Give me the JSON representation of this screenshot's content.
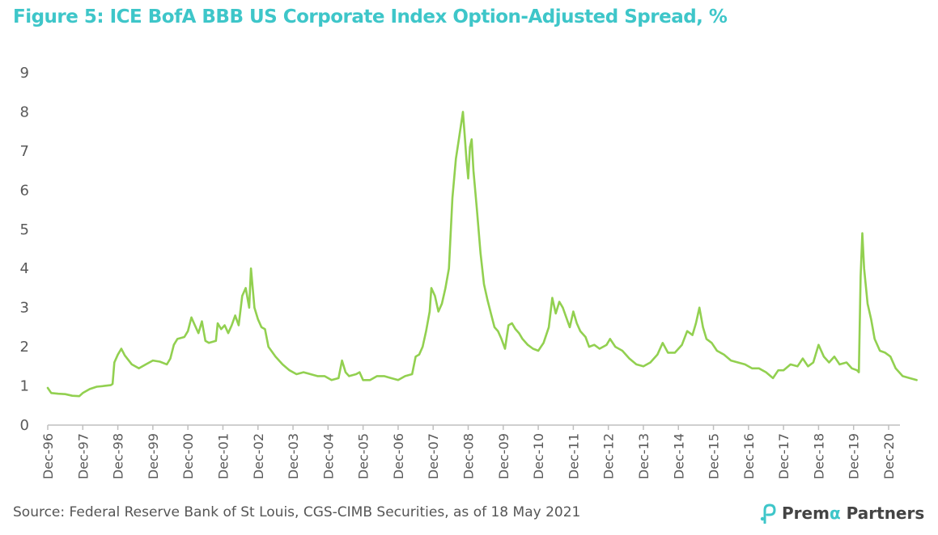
{
  "title": "Figure 5: ICE BofA BBB US Corporate Index Option-Adjusted Spread, %",
  "source": "Source: Federal Reserve Bank of St Louis, CGS-CIMB Securities, as of 18 May 2021",
  "logo": {
    "brand_prefix": "Prem",
    "brand_alpha": "α",
    "brand_suffix": " Partners"
  },
  "colors": {
    "title": "#3ec6c9",
    "line": "#92d050",
    "axis": "#bfbfbf",
    "text": "#595959"
  },
  "chart_data": {
    "type": "line",
    "title": "Figure 5: ICE BofA BBB US Corporate Index Option-Adjusted Spread, %",
    "xlabel": "",
    "ylabel": "",
    "x_ticks": [
      "Dec-96",
      "Dec-97",
      "Dec-98",
      "Dec-99",
      "Dec-00",
      "Dec-01",
      "Dec-02",
      "Dec-03",
      "Dec-04",
      "Dec-05",
      "Dec-06",
      "Dec-07",
      "Dec-08",
      "Dec-09",
      "Dec-10",
      "Dec-11",
      "Dec-12",
      "Dec-13",
      "Dec-14",
      "Dec-15",
      "Dec-16",
      "Dec-17",
      "Dec-18",
      "Dec-19",
      "Dec-20"
    ],
    "y_ticks": [
      "0",
      "1",
      "2",
      "3",
      "4",
      "5",
      "6",
      "7",
      "8",
      "9"
    ],
    "ylim": [
      0,
      9
    ],
    "grid": false,
    "legend": "none",
    "x_unit": "years after Dec-96",
    "series": [
      {
        "name": "",
        "points": [
          [
            0.0,
            0.95
          ],
          [
            0.1,
            0.82
          ],
          [
            0.3,
            0.8
          ],
          [
            0.5,
            0.79
          ],
          [
            0.7,
            0.75
          ],
          [
            0.9,
            0.74
          ],
          [
            1.0,
            0.82
          ],
          [
            1.2,
            0.92
          ],
          [
            1.4,
            0.98
          ],
          [
            1.6,
            1.0
          ],
          [
            1.8,
            1.02
          ],
          [
            1.85,
            1.05
          ],
          [
            1.9,
            1.6
          ],
          [
            2.0,
            1.8
          ],
          [
            2.1,
            1.95
          ],
          [
            2.2,
            1.78
          ],
          [
            2.4,
            1.55
          ],
          [
            2.6,
            1.45
          ],
          [
            2.8,
            1.55
          ],
          [
            3.0,
            1.65
          ],
          [
            3.2,
            1.62
          ],
          [
            3.4,
            1.55
          ],
          [
            3.5,
            1.7
          ],
          [
            3.6,
            2.05
          ],
          [
            3.7,
            2.2
          ],
          [
            3.9,
            2.25
          ],
          [
            4.0,
            2.4
          ],
          [
            4.1,
            2.75
          ],
          [
            4.2,
            2.55
          ],
          [
            4.3,
            2.35
          ],
          [
            4.4,
            2.65
          ],
          [
            4.5,
            2.15
          ],
          [
            4.6,
            2.1
          ],
          [
            4.8,
            2.15
          ],
          [
            4.85,
            2.6
          ],
          [
            4.95,
            2.45
          ],
          [
            5.05,
            2.55
          ],
          [
            5.15,
            2.35
          ],
          [
            5.25,
            2.55
          ],
          [
            5.35,
            2.8
          ],
          [
            5.45,
            2.55
          ],
          [
            5.55,
            3.3
          ],
          [
            5.65,
            3.5
          ],
          [
            5.75,
            3.0
          ],
          [
            5.8,
            4.0
          ],
          [
            5.9,
            3.0
          ],
          [
            6.0,
            2.7
          ],
          [
            6.1,
            2.5
          ],
          [
            6.2,
            2.45
          ],
          [
            6.3,
            2.0
          ],
          [
            6.5,
            1.75
          ],
          [
            6.7,
            1.55
          ],
          [
            6.9,
            1.4
          ],
          [
            7.1,
            1.3
          ],
          [
            7.3,
            1.35
          ],
          [
            7.5,
            1.3
          ],
          [
            7.7,
            1.25
          ],
          [
            7.9,
            1.25
          ],
          [
            8.1,
            1.15
          ],
          [
            8.3,
            1.2
          ],
          [
            8.4,
            1.65
          ],
          [
            8.5,
            1.35
          ],
          [
            8.6,
            1.25
          ],
          [
            8.8,
            1.3
          ],
          [
            8.9,
            1.35
          ],
          [
            9.0,
            1.15
          ],
          [
            9.2,
            1.15
          ],
          [
            9.4,
            1.25
          ],
          [
            9.6,
            1.25
          ],
          [
            9.8,
            1.2
          ],
          [
            10.0,
            1.15
          ],
          [
            10.2,
            1.25
          ],
          [
            10.4,
            1.3
          ],
          [
            10.5,
            1.75
          ],
          [
            10.6,
            1.8
          ],
          [
            10.7,
            2.0
          ],
          [
            10.8,
            2.4
          ],
          [
            10.9,
            2.9
          ],
          [
            10.95,
            3.5
          ],
          [
            11.05,
            3.3
          ],
          [
            11.15,
            2.9
          ],
          [
            11.25,
            3.1
          ],
          [
            11.35,
            3.5
          ],
          [
            11.45,
            4.0
          ],
          [
            11.55,
            5.8
          ],
          [
            11.65,
            6.8
          ],
          [
            11.75,
            7.4
          ],
          [
            11.85,
            8.0
          ],
          [
            11.9,
            7.4
          ],
          [
            11.95,
            6.8
          ],
          [
            12.0,
            6.3
          ],
          [
            12.05,
            7.1
          ],
          [
            12.1,
            7.3
          ],
          [
            12.15,
            6.5
          ],
          [
            12.25,
            5.5
          ],
          [
            12.35,
            4.4
          ],
          [
            12.45,
            3.6
          ],
          [
            12.55,
            3.2
          ],
          [
            12.65,
            2.85
          ],
          [
            12.75,
            2.5
          ],
          [
            12.85,
            2.4
          ],
          [
            12.95,
            2.2
          ],
          [
            13.05,
            1.95
          ],
          [
            13.15,
            2.55
          ],
          [
            13.25,
            2.6
          ],
          [
            13.35,
            2.45
          ],
          [
            13.45,
            2.35
          ],
          [
            13.55,
            2.2
          ],
          [
            13.7,
            2.05
          ],
          [
            13.85,
            1.95
          ],
          [
            14.0,
            1.9
          ],
          [
            14.15,
            2.1
          ],
          [
            14.3,
            2.5
          ],
          [
            14.4,
            3.25
          ],
          [
            14.5,
            2.85
          ],
          [
            14.6,
            3.15
          ],
          [
            14.7,
            3.0
          ],
          [
            14.8,
            2.75
          ],
          [
            14.9,
            2.5
          ],
          [
            15.0,
            2.9
          ],
          [
            15.1,
            2.6
          ],
          [
            15.2,
            2.4
          ],
          [
            15.35,
            2.25
          ],
          [
            15.45,
            2.0
          ],
          [
            15.6,
            2.05
          ],
          [
            15.75,
            1.95
          ],
          [
            15.85,
            2.0
          ],
          [
            15.95,
            2.05
          ],
          [
            16.05,
            2.2
          ],
          [
            16.2,
            2.0
          ],
          [
            16.4,
            1.9
          ],
          [
            16.6,
            1.7
          ],
          [
            16.8,
            1.55
          ],
          [
            17.0,
            1.5
          ],
          [
            17.2,
            1.6
          ],
          [
            17.4,
            1.8
          ],
          [
            17.55,
            2.1
          ],
          [
            17.7,
            1.85
          ],
          [
            17.9,
            1.85
          ],
          [
            18.1,
            2.05
          ],
          [
            18.25,
            2.4
          ],
          [
            18.4,
            2.3
          ],
          [
            18.5,
            2.6
          ],
          [
            18.6,
            3.0
          ],
          [
            18.7,
            2.5
          ],
          [
            18.8,
            2.2
          ],
          [
            18.95,
            2.1
          ],
          [
            19.1,
            1.9
          ],
          [
            19.3,
            1.8
          ],
          [
            19.5,
            1.65
          ],
          [
            19.7,
            1.6
          ],
          [
            19.9,
            1.55
          ],
          [
            20.1,
            1.45
          ],
          [
            20.3,
            1.45
          ],
          [
            20.5,
            1.35
          ],
          [
            20.7,
            1.2
          ],
          [
            20.85,
            1.4
          ],
          [
            21.0,
            1.4
          ],
          [
            21.2,
            1.55
          ],
          [
            21.4,
            1.5
          ],
          [
            21.55,
            1.7
          ],
          [
            21.7,
            1.5
          ],
          [
            21.85,
            1.6
          ],
          [
            22.0,
            2.05
          ],
          [
            22.15,
            1.75
          ],
          [
            22.3,
            1.6
          ],
          [
            22.45,
            1.75
          ],
          [
            22.6,
            1.55
          ],
          [
            22.8,
            1.6
          ],
          [
            22.95,
            1.45
          ],
          [
            23.1,
            1.4
          ],
          [
            23.15,
            1.35
          ],
          [
            23.2,
            3.8
          ],
          [
            23.25,
            4.9
          ],
          [
            23.3,
            4.0
          ],
          [
            23.4,
            3.1
          ],
          [
            23.5,
            2.7
          ],
          [
            23.6,
            2.2
          ],
          [
            23.75,
            1.9
          ],
          [
            23.9,
            1.85
          ],
          [
            24.05,
            1.75
          ],
          [
            24.2,
            1.45
          ],
          [
            24.4,
            1.25
          ],
          [
            24.6,
            1.2
          ],
          [
            24.8,
            1.15
          ]
        ]
      }
    ]
  }
}
